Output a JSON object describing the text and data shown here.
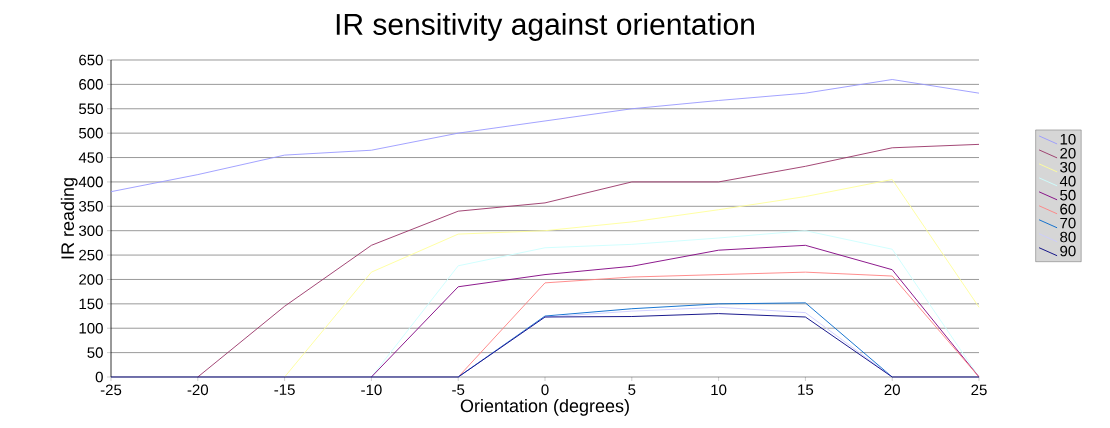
{
  "chart_data": {
    "type": "line",
    "title": "IR sensitivity against orientation",
    "xlabel": "Orientation (degrees)",
    "ylabel": "IR reading",
    "x": [
      -25,
      -20,
      -15,
      -10,
      -5,
      0,
      5,
      10,
      15,
      20,
      25
    ],
    "xlim": [
      -25,
      25
    ],
    "xticks": [
      -25,
      -20,
      -15,
      -10,
      -5,
      0,
      5,
      10,
      15,
      20,
      25
    ],
    "ylim": [
      0,
      650
    ],
    "yticks": [
      0,
      50,
      100,
      150,
      200,
      250,
      300,
      350,
      400,
      450,
      500,
      550,
      600,
      650
    ],
    "grid": "y",
    "legend": "right",
    "marker": "none",
    "line_style": "solid",
    "series": [
      {
        "name": "10",
        "color": "#9999ff",
        "values": [
          380,
          415,
          455,
          465,
          500,
          525,
          550,
          567,
          582,
          610,
          582
        ]
      },
      {
        "name": "20",
        "color": "#993366",
        "values": [
          null,
          0,
          145,
          270,
          340,
          357,
          400,
          400,
          432,
          470,
          477
        ]
      },
      {
        "name": "30",
        "color": "#ffff99",
        "values": [
          null,
          null,
          0,
          215,
          293,
          300,
          318,
          343,
          370,
          405,
          143
        ]
      },
      {
        "name": "40",
        "color": "#ccffff",
        "values": [
          null,
          null,
          null,
          0,
          228,
          265,
          272,
          285,
          300,
          262,
          0
        ]
      },
      {
        "name": "50",
        "color": "#800080",
        "values": [
          null,
          null,
          null,
          0,
          185,
          210,
          227,
          260,
          270,
          220,
          0
        ]
      },
      {
        "name": "60",
        "color": "#ff8080",
        "values": [
          null,
          null,
          null,
          null,
          0,
          193,
          205,
          210,
          215,
          207,
          0
        ]
      },
      {
        "name": "70",
        "color": "#0066cc",
        "values": [
          null,
          null,
          null,
          null,
          0,
          125,
          140,
          150,
          152,
          0,
          null
        ]
      },
      {
        "name": "80",
        "color": "#ccccff",
        "values": [
          null,
          null,
          null,
          null,
          0,
          123,
          135,
          143,
          132,
          0,
          null
        ]
      },
      {
        "name": "90",
        "color": "#000080",
        "values": [
          0,
          0,
          0,
          0,
          0,
          123,
          124,
          130,
          123,
          0,
          0
        ]
      }
    ]
  }
}
